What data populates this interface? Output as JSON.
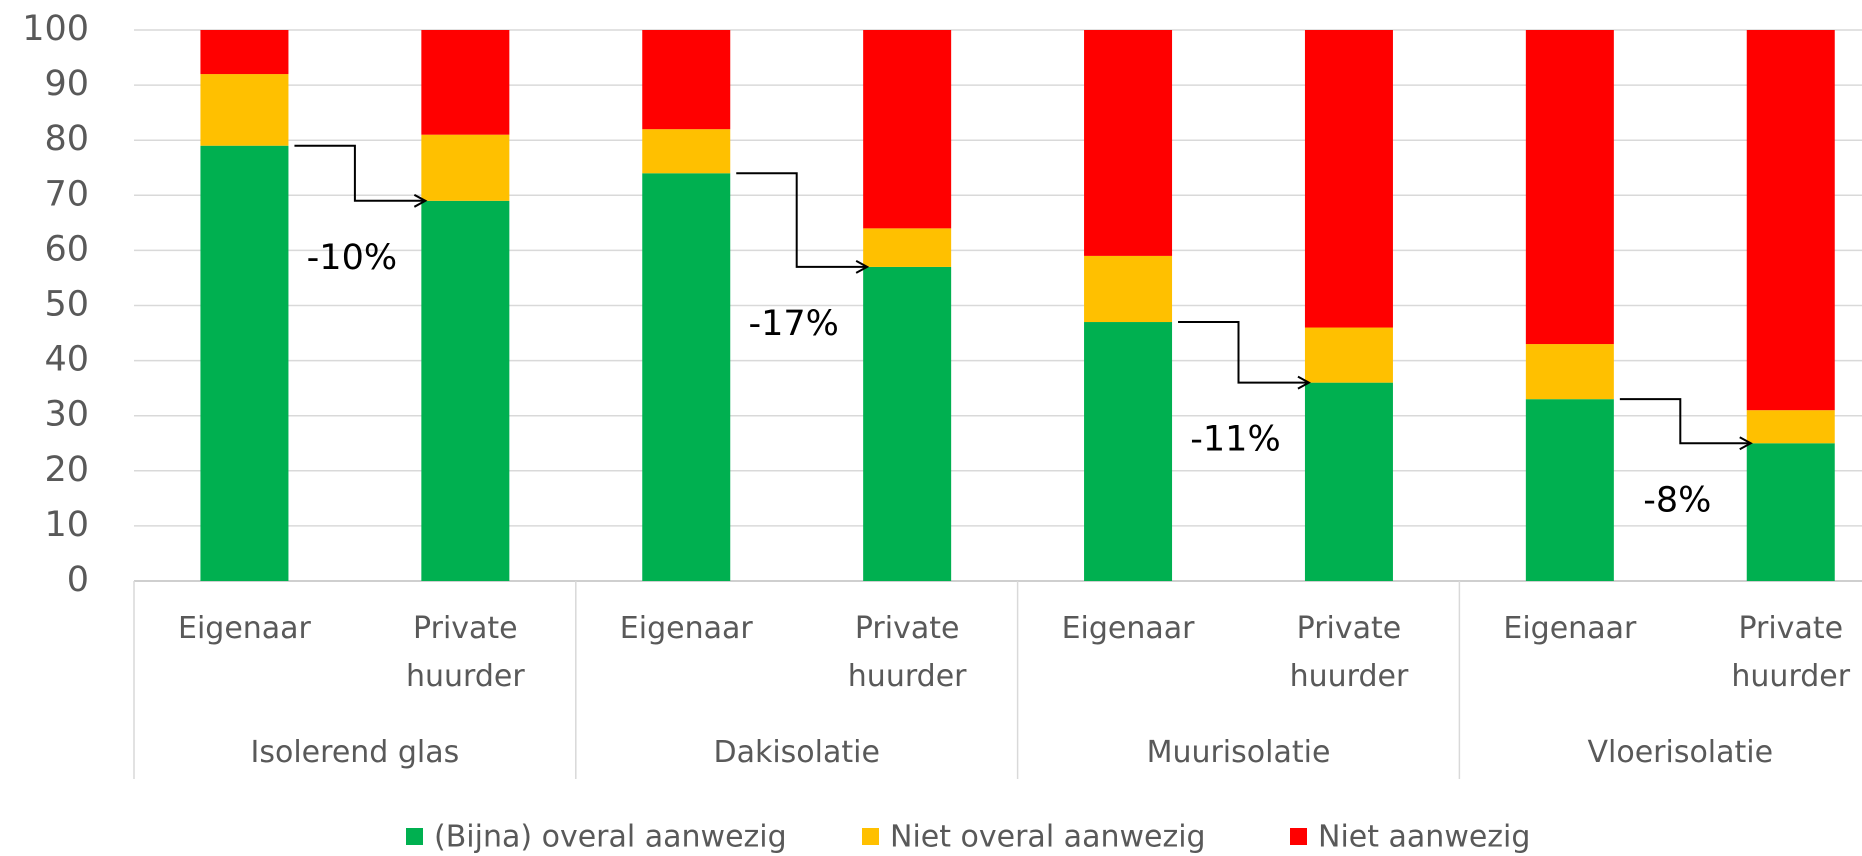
{
  "chart_data": {
    "type": "stacked_bar",
    "categories": [
      "Eigenaar",
      "Private huurder",
      "Eigenaar",
      "Private huurder",
      "Eigenaar",
      "Private huurder",
      "Eigenaar",
      "Private huurder"
    ],
    "groups": [
      "Isolerend glas",
      "Dakisolatie",
      "Muurisolatie",
      "Vloerisolatie"
    ],
    "series": [
      {
        "name": "(Bijna) overal aanwezig",
        "color": "#00b050",
        "values": [
          79,
          69,
          74,
          57,
          47,
          36,
          33,
          25
        ]
      },
      {
        "name": "Niet overal aanwezig",
        "color": "#ffc000",
        "values": [
          13,
          12,
          8,
          7,
          12,
          10,
          10,
          6
        ]
      },
      {
        "name": "Niet aanwezig",
        "color": "#ff0000",
        "values": [
          8,
          19,
          18,
          36,
          41,
          54,
          57,
          69
        ]
      }
    ],
    "annotations": [
      "-10%",
      "-17%",
      "-11%",
      "-8%"
    ],
    "ylim": [
      0,
      100
    ],
    "yticks": [
      0,
      10,
      20,
      30,
      40,
      50,
      60,
      70,
      80,
      90,
      100
    ],
    "grid": true,
    "legend": "bottom"
  }
}
